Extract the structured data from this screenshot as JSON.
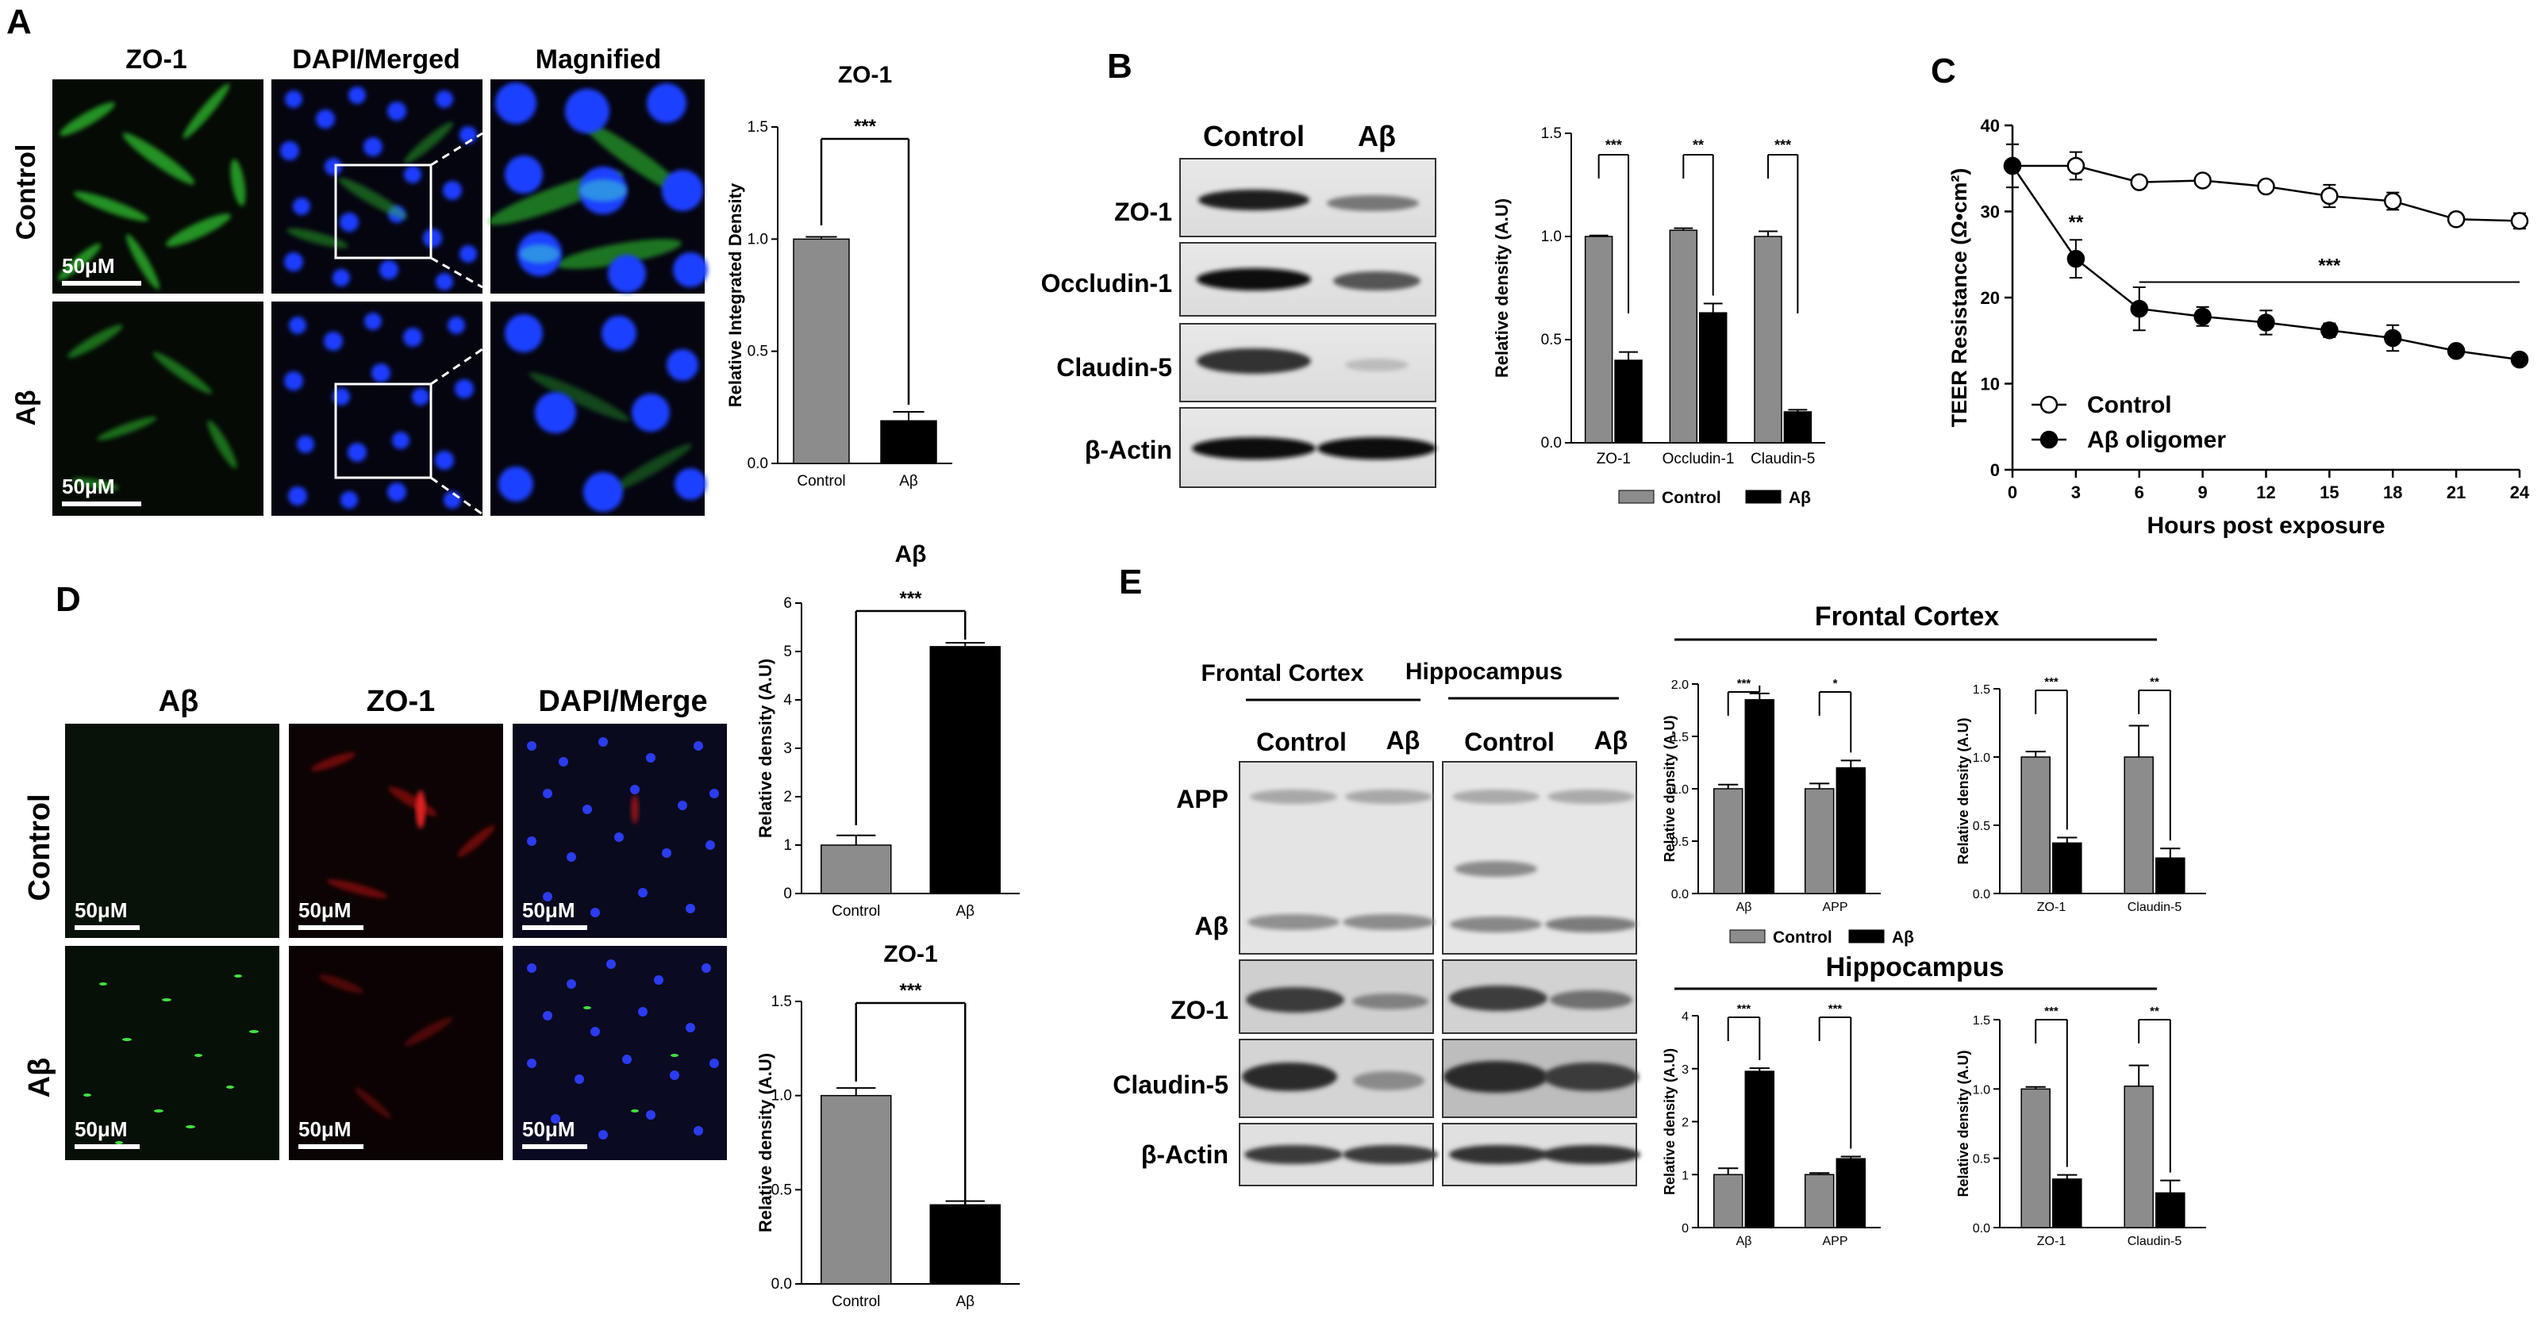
{
  "panel_labels": {
    "a": "A",
    "b": "B",
    "c": "C",
    "d": "D",
    "e": "E"
  },
  "colors": {
    "control": "#8c8c8c",
    "abeta": "#000000",
    "micro_bg": "#050a05"
  },
  "panel_a": {
    "headers": [
      "ZO-1",
      "DAPI/Merged",
      "Magnified"
    ],
    "rows": [
      "Control",
      "Aβ"
    ],
    "scalebar": "50μM"
  },
  "panel_b": {
    "blot_cols": [
      "Control",
      "Aβ"
    ],
    "blot_rows": [
      "ZO-1",
      "Occludin-1",
      "Claudin-5",
      "β-Actin"
    ]
  },
  "panel_d": {
    "headers": [
      "Aβ",
      "ZO-1",
      "DAPI/Merge"
    ],
    "rows": [
      "Control",
      "Aβ"
    ],
    "scalebar": "50μM"
  },
  "panel_e": {
    "regions": [
      "Frontal Cortex",
      "Hippocampus"
    ],
    "lane_labels": [
      "Control",
      "Aβ",
      "Control",
      "Aβ"
    ],
    "blot_rows": [
      "APP",
      "Aβ",
      "ZO-1",
      "Claudin-5",
      "β-Actin"
    ],
    "section_titles": [
      "Frontal Cortex",
      "Hippocampus"
    ],
    "legend": [
      "Control",
      "Aβ"
    ]
  },
  "chart_data": [
    {
      "id": "a_zo1",
      "type": "bar",
      "title": "ZO-1",
      "categories": [
        "Control",
        "Aβ"
      ],
      "values": [
        1.0,
        0.19
      ],
      "errors": [
        0.01,
        0.04
      ],
      "ylabel": "Relative Integrated Density",
      "ylim": [
        0,
        1.5
      ],
      "yticks": [
        "0.0",
        "0.5",
        "1.0",
        "1.5"
      ],
      "sig": [
        "***"
      ]
    },
    {
      "id": "b_density",
      "type": "bar",
      "categories": [
        "ZO-1",
        "Occludin-1",
        "Claudin-5"
      ],
      "series": [
        {
          "name": "Control",
          "values": [
            1.0,
            1.03,
            1.0
          ],
          "errors": [
            0.005,
            0.01,
            0.025
          ]
        },
        {
          "name": "Aβ",
          "values": [
            0.4,
            0.63,
            0.15
          ],
          "errors": [
            0.04,
            0.045,
            0.01
          ]
        }
      ],
      "ylabel": "Relative density (A.U)",
      "ylim": [
        0,
        1.5
      ],
      "yticks": [
        "0.0",
        "0.5",
        "1.0",
        "1.5"
      ],
      "sig": [
        "***",
        "**",
        "***"
      ],
      "legend": [
        "Control",
        "Aβ"
      ]
    },
    {
      "id": "c_teer",
      "type": "line",
      "x": [
        0,
        3,
        6,
        9,
        12,
        15,
        18,
        21,
        24
      ],
      "xticks": [
        "0",
        "3",
        "6",
        "9",
        "12",
        "15",
        "18",
        "21",
        "24"
      ],
      "xlabel": "Hours post exposure",
      "ylabel": "TEER Resistance (Ω•cm²)",
      "ylim": [
        0,
        40
      ],
      "yticks": [
        "0",
        "10",
        "20",
        "30",
        "40"
      ],
      "series": [
        {
          "name": "Control",
          "values": [
            35.3,
            35.3,
            33.4,
            33.6,
            32.9,
            31.8,
            31.2,
            29.1,
            28.9
          ],
          "errors": [
            2.5,
            1.6,
            0.5,
            0.5,
            0.5,
            1.3,
            1.0,
            0.7,
            0.9
          ]
        },
        {
          "name": "Aβ oligomer",
          "values": [
            35.3,
            24.5,
            18.7,
            17.8,
            17.1,
            16.2,
            15.3,
            13.8,
            12.8
          ],
          "errors": [
            2.5,
            2.2,
            2.5,
            1.1,
            1.4,
            0.8,
            1.5,
            0.5,
            0.3
          ]
        }
      ],
      "sig": [
        "**",
        "***"
      ]
    },
    {
      "id": "d_abeta",
      "type": "bar",
      "title": "Aβ",
      "categories": [
        "Control",
        "Aβ"
      ],
      "values": [
        1.0,
        5.1
      ],
      "errors": [
        0.2,
        0.08
      ],
      "ylabel": "Relative density (A.U)",
      "ylim": [
        0,
        6
      ],
      "yticks": [
        "0",
        "1",
        "2",
        "3",
        "4",
        "5",
        "6"
      ],
      "sig": [
        "***"
      ]
    },
    {
      "id": "d_zo1",
      "type": "bar",
      "title": "ZO-1",
      "categories": [
        "Control",
        "Aβ"
      ],
      "values": [
        1.0,
        0.42
      ],
      "errors": [
        0.04,
        0.02
      ],
      "ylabel": "Relative density (A.U)",
      "ylim": [
        0,
        1.5
      ],
      "yticks": [
        "0.0",
        "0.5",
        "1.0",
        "1.5"
      ],
      "sig": [
        "***"
      ]
    },
    {
      "id": "e_fc1",
      "type": "bar",
      "categories": [
        "Aβ",
        "APP"
      ],
      "series": [
        {
          "name": "Control",
          "values": [
            1.0,
            1.0
          ],
          "errors": [
            0.04,
            0.05
          ]
        },
        {
          "name": "Aβ",
          "values": [
            1.85,
            1.2
          ],
          "errors": [
            0.06,
            0.07
          ]
        }
      ],
      "ylabel": "Relative density (A.U)",
      "ylim": [
        0,
        2.0
      ],
      "yticks": [
        "0.0",
        "0.5",
        "1.0",
        "1.5",
        "2.0"
      ],
      "sig": [
        "***",
        "*"
      ]
    },
    {
      "id": "e_fc2",
      "type": "bar",
      "categories": [
        "ZO-1",
        "Claudin-5"
      ],
      "series": [
        {
          "name": "Control",
          "values": [
            1.0,
            1.0
          ],
          "errors": [
            0.04,
            0.23
          ]
        },
        {
          "name": "Aβ",
          "values": [
            0.37,
            0.26
          ],
          "errors": [
            0.04,
            0.07
          ]
        }
      ],
      "ylabel": "Relative density (A.U)",
      "ylim": [
        0,
        1.5
      ],
      "yticks": [
        "0.0",
        "0.5",
        "1.0",
        "1.5"
      ],
      "sig": [
        "***",
        "**"
      ]
    },
    {
      "id": "e_hc1",
      "type": "bar",
      "categories": [
        "Aβ",
        "APP"
      ],
      "series": [
        {
          "name": "Control",
          "values": [
            1.0,
            1.0
          ],
          "errors": [
            0.12,
            0.03
          ]
        },
        {
          "name": "Aβ",
          "values": [
            2.95,
            1.3
          ],
          "errors": [
            0.06,
            0.04
          ]
        }
      ],
      "ylabel": "Relative density (A.U)",
      "ylim": [
        0,
        4
      ],
      "yticks": [
        "0",
        "1",
        "2",
        "3",
        "4"
      ],
      "sig": [
        "***",
        "***"
      ]
    },
    {
      "id": "e_hc2",
      "type": "bar",
      "categories": [
        "ZO-1",
        "Claudin-5"
      ],
      "series": [
        {
          "name": "Control",
          "values": [
            1.0,
            1.02
          ],
          "errors": [
            0.015,
            0.15
          ]
        },
        {
          "name": "Aβ",
          "values": [
            0.35,
            0.25
          ],
          "errors": [
            0.03,
            0.09
          ]
        }
      ],
      "ylabel": "Relative density (A.U)",
      "ylim": [
        0,
        1.5
      ],
      "yticks": [
        "0.0",
        "0.5",
        "1.0",
        "1.5"
      ],
      "sig": [
        "***",
        "**"
      ]
    }
  ]
}
